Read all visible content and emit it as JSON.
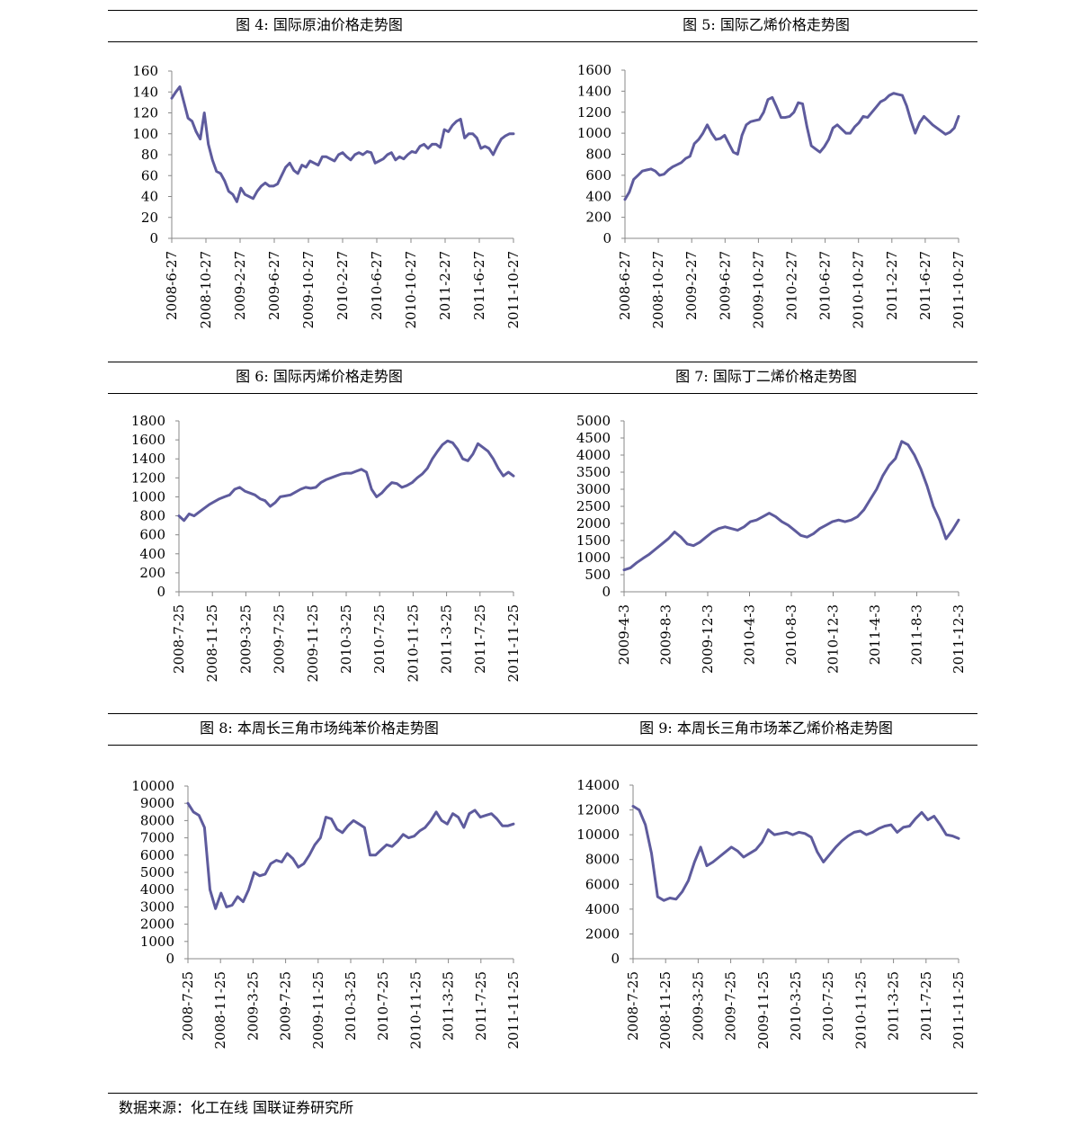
{
  "source": "数据来源：化工在线 国联证券研究所",
  "colors": {
    "line": "#5e5b9d",
    "axis": "#888888"
  },
  "chart_data": [
    {
      "type": "line",
      "title": "图 4: 国际原油价格走势图",
      "ylim": [
        0,
        160
      ],
      "yticks": [
        "0",
        "20",
        "40",
        "60",
        "80",
        "100",
        "120",
        "140",
        "160"
      ],
      "xticks": [
        "2008-6-27",
        "2008-10-27",
        "2009-2-27",
        "2009-6-27",
        "2009-10-27",
        "2010-2-27",
        "2010-6-27",
        "2010-10-27",
        "2011-2-27",
        "2011-6-27",
        "2011-10-27"
      ],
      "values": [
        134,
        140,
        145,
        130,
        115,
        112,
        102,
        95,
        120,
        90,
        75,
        64,
        62,
        55,
        45,
        42,
        35,
        48,
        42,
        40,
        38,
        45,
        50,
        53,
        50,
        50,
        52,
        60,
        68,
        72,
        65,
        62,
        70,
        68,
        74,
        72,
        70,
        78,
        78,
        76,
        74,
        80,
        82,
        78,
        75,
        80,
        82,
        80,
        83,
        82,
        72,
        74,
        76,
        80,
        82,
        75,
        78,
        76,
        80,
        83,
        82,
        88,
        90,
        86,
        90,
        90,
        87,
        104,
        102,
        108,
        112,
        114,
        96,
        100,
        100,
        96,
        86,
        88,
        86,
        80,
        88,
        95,
        98,
        100,
        100
      ]
    },
    {
      "type": "line",
      "title": "图 5: 国际乙烯价格走势图",
      "ylim": [
        0,
        1600
      ],
      "yticks": [
        "0",
        "200",
        "400",
        "600",
        "800",
        "1000",
        "1200",
        "1400",
        "1600"
      ],
      "xticks": [
        "2008-6-27",
        "2008-10-27",
        "2009-2-27",
        "2009-6-27",
        "2009-10-27",
        "2010-2-27",
        "2010-6-27",
        "2010-10-27",
        "2011-2-27",
        "2011-6-27",
        "2011-10-27"
      ],
      "values": [
        370,
        440,
        560,
        600,
        640,
        650,
        660,
        640,
        600,
        610,
        650,
        680,
        700,
        720,
        760,
        780,
        900,
        940,
        1000,
        1080,
        1000,
        940,
        950,
        980,
        900,
        820,
        800,
        980,
        1080,
        1110,
        1120,
        1130,
        1200,
        1320,
        1340,
        1250,
        1150,
        1150,
        1160,
        1200,
        1290,
        1280,
        1060,
        880,
        850,
        820,
        870,
        940,
        1050,
        1080,
        1040,
        1000,
        1000,
        1060,
        1100,
        1160,
        1150,
        1200,
        1250,
        1300,
        1320,
        1360,
        1380,
        1370,
        1360,
        1260,
        1120,
        1000,
        1100,
        1160,
        1120,
        1080,
        1050,
        1020,
        990,
        1010,
        1050,
        1160
      ]
    },
    {
      "type": "line",
      "title": "图 6: 国际丙烯价格走势图",
      "ylim": [
        0,
        1800
      ],
      "yticks": [
        "0",
        "200",
        "400",
        "600",
        "800",
        "1000",
        "1200",
        "1400",
        "1600",
        "1800"
      ],
      "xticks": [
        "2008-7-25",
        "2008-11-25",
        "2009-3-25",
        "2009-7-25",
        "2009-11-25",
        "2010-3-25",
        "2010-7-25",
        "2010-11-25",
        "2011-3-25",
        "2011-7-25",
        "2011-11-25"
      ],
      "values": [
        800,
        750,
        820,
        800,
        840,
        880,
        920,
        950,
        980,
        1000,
        1020,
        1080,
        1100,
        1060,
        1040,
        1020,
        980,
        960,
        900,
        940,
        1000,
        1010,
        1020,
        1050,
        1080,
        1100,
        1090,
        1100,
        1150,
        1180,
        1200,
        1220,
        1240,
        1250,
        1250,
        1270,
        1290,
        1260,
        1080,
        1000,
        1040,
        1100,
        1150,
        1140,
        1100,
        1120,
        1150,
        1200,
        1240,
        1300,
        1400,
        1480,
        1550,
        1590,
        1570,
        1500,
        1400,
        1380,
        1450,
        1560,
        1520,
        1480,
        1400,
        1300,
        1220,
        1260,
        1220
      ]
    },
    {
      "type": "line",
      "title": "图 7: 国际丁二烯价格走势图",
      "ylim": [
        0,
        5000
      ],
      "yticks": [
        "0",
        "500",
        "1000",
        "1500",
        "2000",
        "2500",
        "3000",
        "3500",
        "4000",
        "4500",
        "5000"
      ],
      "xticks": [
        "2009-4-3",
        "2009-8-3",
        "2009-12-3",
        "2010-4-3",
        "2010-8-3",
        "2010-12-3",
        "2011-4-3",
        "2011-8-3",
        "2011-12-3"
      ],
      "values": [
        640,
        700,
        850,
        980,
        1100,
        1250,
        1400,
        1550,
        1750,
        1600,
        1400,
        1350,
        1450,
        1600,
        1750,
        1850,
        1900,
        1850,
        1800,
        1900,
        2050,
        2100,
        2200,
        2300,
        2200,
        2050,
        1950,
        1800,
        1650,
        1600,
        1700,
        1850,
        1950,
        2050,
        2100,
        2050,
        2100,
        2200,
        2400,
        2700,
        3000,
        3400,
        3700,
        3900,
        4400,
        4300,
        4000,
        3600,
        3100,
        2500,
        2100,
        1550,
        1800,
        2100
      ]
    },
    {
      "type": "line",
      "title": "图 8: 本周长三角市场纯苯价格走势图",
      "ylim": [
        0,
        10000
      ],
      "yticks": [
        "0",
        "1000",
        "2000",
        "3000",
        "4000",
        "5000",
        "6000",
        "7000",
        "8000",
        "9000",
        "10000"
      ],
      "xticks": [
        "2008-7-25",
        "2008-11-25",
        "2009-3-25",
        "2009-7-25",
        "2009-11-25",
        "2010-3-25",
        "2010-7-25",
        "2010-11-25",
        "2011-3-25",
        "2011-7-25",
        "2011-11-25"
      ],
      "values": [
        9000,
        8500,
        8300,
        7600,
        4000,
        2900,
        3800,
        3000,
        3100,
        3600,
        3300,
        4000,
        5000,
        4800,
        4900,
        5500,
        5700,
        5600,
        6100,
        5800,
        5300,
        5500,
        6000,
        6600,
        7000,
        8200,
        8100,
        7500,
        7300,
        7700,
        8000,
        7800,
        7600,
        6000,
        6000,
        6300,
        6600,
        6500,
        6800,
        7200,
        7000,
        7100,
        7400,
        7600,
        8000,
        8500,
        8000,
        7800,
        8400,
        8200,
        7600,
        8400,
        8600,
        8200,
        8300,
        8400,
        8100,
        7700,
        7700,
        7800
      ]
    },
    {
      "type": "line",
      "title": "图 9: 本周长三角市场苯乙烯价格走势图",
      "ylim": [
        0,
        14000
      ],
      "yticks": [
        "0",
        "2000",
        "4000",
        "6000",
        "8000",
        "10000",
        "12000",
        "14000"
      ],
      "xticks": [
        "2008-7-25",
        "2008-11-25",
        "2009-3-25",
        "2009-7-25",
        "2009-11-25",
        "2010-3-25",
        "2010-7-25",
        "2010-11-25",
        "2011-3-25",
        "2011-7-25",
        "2011-11-25"
      ],
      "values": [
        12300,
        12000,
        10800,
        8500,
        5000,
        4700,
        4900,
        4800,
        5400,
        6300,
        7800,
        9000,
        7500,
        7800,
        8200,
        8600,
        9000,
        8700,
        8200,
        8500,
        8800,
        9400,
        10400,
        10000,
        10100,
        10200,
        10000,
        10200,
        10100,
        9800,
        8600,
        7800,
        8400,
        9000,
        9500,
        9900,
        10200,
        10300,
        10000,
        10200,
        10500,
        10700,
        10800,
        10200,
        10600,
        10700,
        11300,
        11800,
        11200,
        11500,
        10800,
        10000,
        9900,
        9700
      ]
    }
  ]
}
